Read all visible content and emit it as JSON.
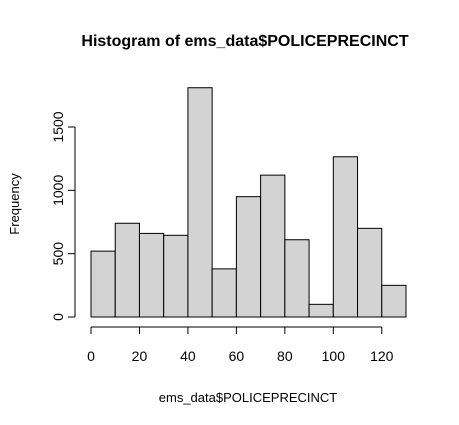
{
  "chart_data": {
    "type": "bar",
    "title": "Histogram of ems_data$POLICEPRECINCT",
    "xlabel": "ems_data$POLICEPRECINCT",
    "ylabel": "Frequency",
    "bins": [
      {
        "start": 0,
        "end": 10,
        "count": 520
      },
      {
        "start": 10,
        "end": 20,
        "count": 740
      },
      {
        "start": 20,
        "end": 30,
        "count": 660
      },
      {
        "start": 30,
        "end": 40,
        "count": 645
      },
      {
        "start": 40,
        "end": 50,
        "count": 1810
      },
      {
        "start": 50,
        "end": 60,
        "count": 380
      },
      {
        "start": 60,
        "end": 70,
        "count": 950
      },
      {
        "start": 70,
        "end": 80,
        "count": 1120
      },
      {
        "start": 80,
        "end": 90,
        "count": 610
      },
      {
        "start": 90,
        "end": 100,
        "count": 100
      },
      {
        "start": 100,
        "end": 110,
        "count": 1265
      },
      {
        "start": 110,
        "end": 120,
        "count": 700
      },
      {
        "start": 120,
        "end": 130,
        "count": 250
      }
    ],
    "xlim": [
      0,
      130
    ],
    "ylim": [
      0,
      1810
    ],
    "x_ticks": [
      0,
      20,
      40,
      60,
      80,
      100,
      120
    ],
    "x_tick_labels": [
      "0",
      "20",
      "40",
      "60",
      "80",
      "100",
      "120"
    ],
    "y_ticks": [
      0,
      500,
      1000,
      1500
    ],
    "y_tick_labels": [
      "0",
      "500",
      "1000",
      "1500"
    ],
    "bar_fill": "#d3d3d3",
    "bar_stroke": "#000000",
    "grid": false,
    "legend": "none"
  }
}
